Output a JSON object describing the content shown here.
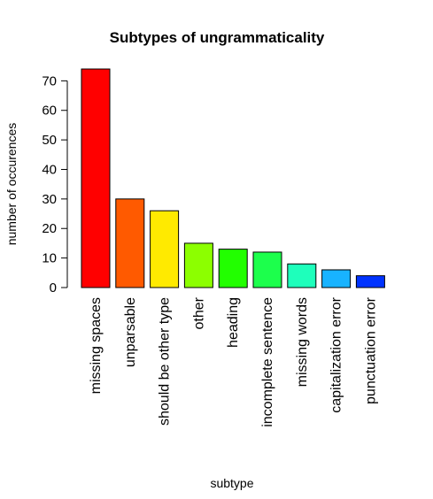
{
  "chart_data": {
    "type": "bar",
    "title": "Subtypes of ungrammaticality",
    "xlabel": "subtype",
    "ylabel": "number of occurences",
    "categories": [
      "missing spaces",
      "unparsable",
      "should be other type",
      "other",
      "heading",
      "incomplete sentence",
      "missing words",
      "capitalization error",
      "punctuation error"
    ],
    "values": [
      74,
      30,
      26,
      15,
      13,
      12,
      8,
      6,
      4
    ],
    "colors": [
      "#ff0000",
      "#ff5a00",
      "#ffea00",
      "#8cff00",
      "#22ff00",
      "#1cff4c",
      "#1effbb",
      "#18b3ff",
      "#0033ff"
    ],
    "ylim": [
      0,
      74
    ],
    "yticks": [
      0,
      10,
      20,
      30,
      40,
      50,
      60,
      70
    ],
    "grid": false,
    "legend": "none"
  }
}
